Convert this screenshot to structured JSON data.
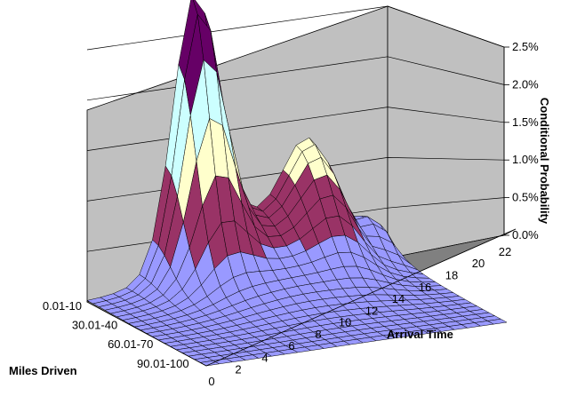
{
  "chart_data": {
    "type": "surface",
    "xlabel": "Arrival Time",
    "ylabel": "Miles Driven",
    "zlabel": "Conditional Probability",
    "x_ticks": [
      "0",
      "2",
      "4",
      "6",
      "8",
      "10",
      "12",
      "14",
      "16",
      "18",
      "20",
      "22"
    ],
    "y_ticks": [
      "0.01-10",
      "30.01-40",
      "60.01-70",
      "90.01-100"
    ],
    "z_ticks": [
      "0.0%",
      "0.5%",
      "1.0%",
      "1.5%",
      "2.0%",
      "2.5%"
    ],
    "zlim": [
      0,
      0.025
    ],
    "x_range": [
      0,
      23
    ],
    "y_range": [
      0,
      10
    ],
    "band_colors": [
      "#9999ff",
      "#993366",
      "#ffffcc",
      "#ccffff",
      "#660066"
    ],
    "floor_color": "#808080",
    "wall_color": "#c0c0c0",
    "surface_description": "Probability surface peaking at about 2.5% near arrival time 8 for the shortest trips (0.01-10 miles), with a secondary ridge near arrival time 17-18 (~1.0-1.5%) and a small bump near arrival time 22; values fall toward 0% for longer trips and early arrival times."
  }
}
